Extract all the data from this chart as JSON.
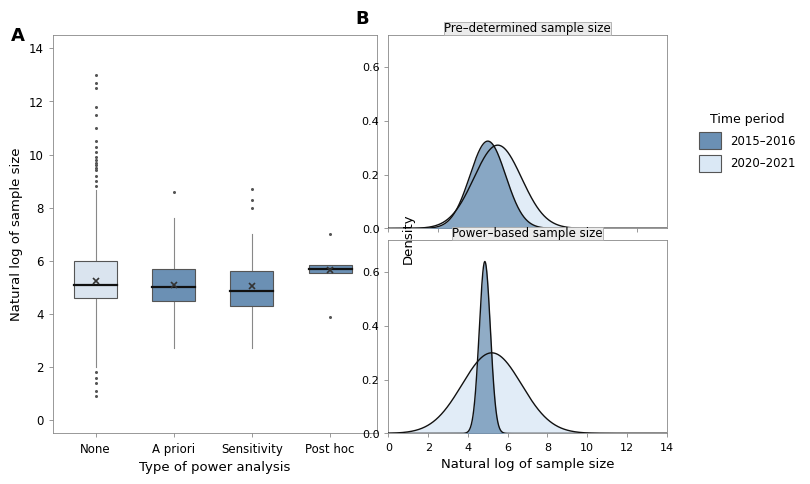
{
  "panel_a": {
    "label": "A",
    "categories": [
      "None",
      "A priori",
      "Sensitivity",
      "Post hoc"
    ],
    "xlabel": "Type of power analysis",
    "ylabel": "Natural log of sample size",
    "ylim": [
      -0.5,
      14.5
    ],
    "yticks": [
      0,
      2,
      4,
      6,
      8,
      10,
      12,
      14
    ],
    "boxes": [
      {
        "label": "None",
        "q1": 4.6,
        "median": 5.1,
        "q3": 6.0,
        "whisker_low": 2.0,
        "whisker_high": 8.65,
        "mean": 5.25,
        "outliers_low": [
          1.8,
          1.6,
          1.4,
          1.1,
          0.9
        ],
        "outliers_high": [
          8.8,
          9.0,
          9.2,
          9.4,
          9.5,
          9.6,
          9.7,
          9.8,
          9.9,
          10.1,
          10.3,
          10.5,
          11.0,
          11.5,
          11.8,
          12.5,
          12.7,
          13.0
        ],
        "color": "#dae4ef",
        "edge_color": "#555555"
      },
      {
        "label": "A priori",
        "q1": 4.5,
        "median": 5.0,
        "q3": 5.7,
        "whisker_low": 2.7,
        "whisker_high": 7.6,
        "mean": 5.1,
        "outliers_low": [],
        "outliers_high": [
          8.6
        ],
        "color": "#6b90b4",
        "edge_color": "#555555"
      },
      {
        "label": "Sensitivity",
        "q1": 4.3,
        "median": 4.85,
        "q3": 5.6,
        "whisker_low": 2.7,
        "whisker_high": 7.0,
        "mean": 5.05,
        "outliers_low": [],
        "outliers_high": [
          8.0,
          8.3,
          8.7
        ],
        "color": "#6b90b4",
        "edge_color": "#555555"
      },
      {
        "label": "Post hoc",
        "q1": 5.55,
        "median": 5.7,
        "q3": 5.85,
        "whisker_low": 5.55,
        "whisker_high": 5.85,
        "mean": 5.65,
        "outliers_low": [
          3.9
        ],
        "outliers_high": [
          7.0
        ],
        "color": "#6b90b4",
        "edge_color": "#555555"
      }
    ]
  },
  "panel_b": {
    "label": "B",
    "xlabel": "Natural log of sample size",
    "ylabel": "Density",
    "xlim": [
      0,
      14
    ],
    "xticks": [
      0,
      2,
      4,
      6,
      8,
      10,
      12,
      14
    ],
    "subplots": [
      {
        "title": "Pre–determined sample size",
        "ylim": [
          0,
          0.72
        ],
        "yticks": [
          0.0,
          0.2,
          0.4,
          0.6
        ],
        "series": [
          {
            "label": "2015–2016",
            "mean": 5.0,
            "std": 0.9,
            "peak": 0.325,
            "color_fill": "#6b90b4",
            "color_line": "#111111",
            "alpha": 0.75,
            "zorder": 3
          },
          {
            "label": "2020–2021",
            "mean": 5.5,
            "std": 1.2,
            "peak": 0.31,
            "color_fill": "#dae8f5",
            "color_line": "#111111",
            "alpha": 0.8,
            "zorder": 2
          }
        ]
      },
      {
        "title": "Power–based sample size",
        "ylim": [
          0,
          0.72
        ],
        "yticks": [
          0.0,
          0.2,
          0.4,
          0.6
        ],
        "series": [
          {
            "label": "2015–2016",
            "mean": 4.85,
            "std": 0.28,
            "peak": 0.64,
            "color_fill": "#6b90b4",
            "color_line": "#111111",
            "alpha": 0.75,
            "zorder": 3
          },
          {
            "label": "2020–2021",
            "mean": 5.2,
            "std": 1.5,
            "peak": 0.3,
            "color_fill": "#dae8f5",
            "color_line": "#111111",
            "alpha": 0.8,
            "zorder": 2
          }
        ]
      }
    ],
    "legend": {
      "title": "Time period",
      "entries": [
        {
          "label": "2015–2016",
          "color": "#6b90b4",
          "edge": "#555555"
        },
        {
          "label": "2020–2021",
          "color": "#dae8f5",
          "edge": "#555555"
        }
      ]
    }
  }
}
